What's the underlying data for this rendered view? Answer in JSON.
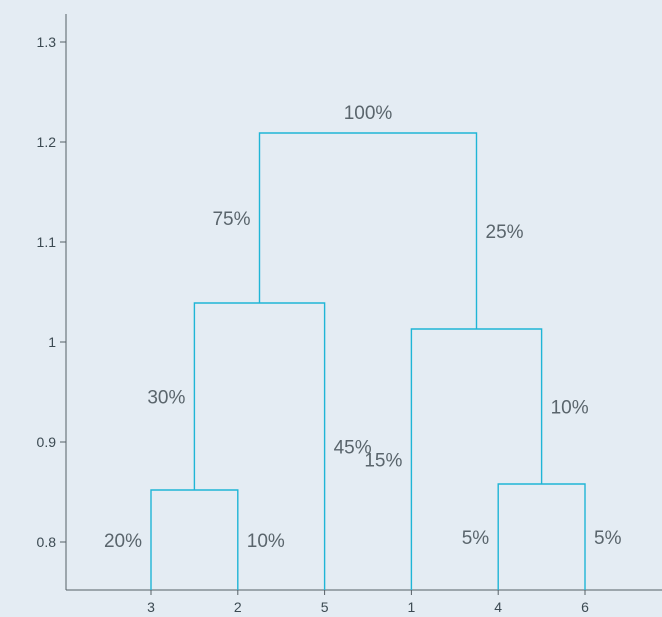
{
  "chart_data": {
    "type": "dendrogram",
    "leaves": [
      "3",
      "2",
      "5",
      "1",
      "4",
      "6"
    ],
    "y_ticks": [
      "0.8",
      "0.9",
      "1",
      "1.1",
      "1.2",
      "1.3"
    ],
    "y_tick_values": [
      0.8,
      0.9,
      1.0,
      1.1,
      1.2,
      1.3
    ],
    "ylim": [
      0.75,
      1.33
    ],
    "leaf_height": 0.75,
    "merges": [
      {
        "left": "3",
        "right": "2",
        "height": 0.852,
        "left_label": "20%",
        "right_label": "10%"
      },
      {
        "left": "4",
        "right": "6",
        "height": 0.858,
        "left_label": "5%",
        "right_label": "5%"
      },
      {
        "left": "3+2",
        "right": "5",
        "height": 1.039,
        "left_label": "30%",
        "right_label": "45%"
      },
      {
        "left": "1",
        "right": "4+6",
        "height": 1.013,
        "left_label": "15%",
        "right_label": "10%"
      },
      {
        "left": "3+2+5",
        "right": "1+4+6",
        "height": 1.209,
        "left_label": "75%",
        "right_label": "25%",
        "top_label": "100%"
      }
    ],
    "line_color": "#1fb5d6"
  }
}
